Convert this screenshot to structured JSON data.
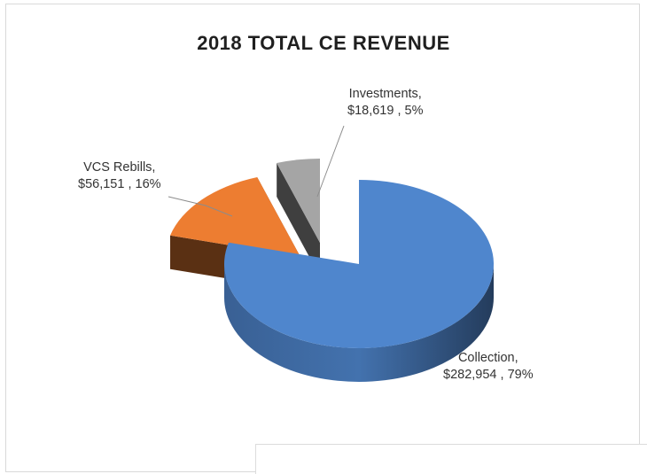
{
  "chart_data": {
    "type": "pie",
    "title": "2018 TOTAL CE REVENUE",
    "style": "3D exploded pie",
    "series": [
      {
        "label": "Collection",
        "value": 282954,
        "value_text": "$282,954",
        "percent": 79,
        "percent_text": "79%",
        "color": "#4f86cd"
      },
      {
        "label": "VCS Rebills",
        "value": 56151,
        "value_text": "$56,151",
        "percent": 16,
        "percent_text": "16%",
        "color": "#ed7d31"
      },
      {
        "label": "Investments",
        "value": 18619,
        "value_text": "$18,619",
        "percent": 5,
        "percent_text": "5%",
        "color": "#a5a5a5"
      }
    ],
    "labels": {
      "collection": {
        "line1": "Collection,",
        "line2": "$282,954 , 79%"
      },
      "vcs": {
        "line1": "VCS Rebills,",
        "line2": "$56,151 , 16%"
      },
      "investments": {
        "line1": "Investments,",
        "line2": "$18,619 , 5%"
      }
    }
  }
}
